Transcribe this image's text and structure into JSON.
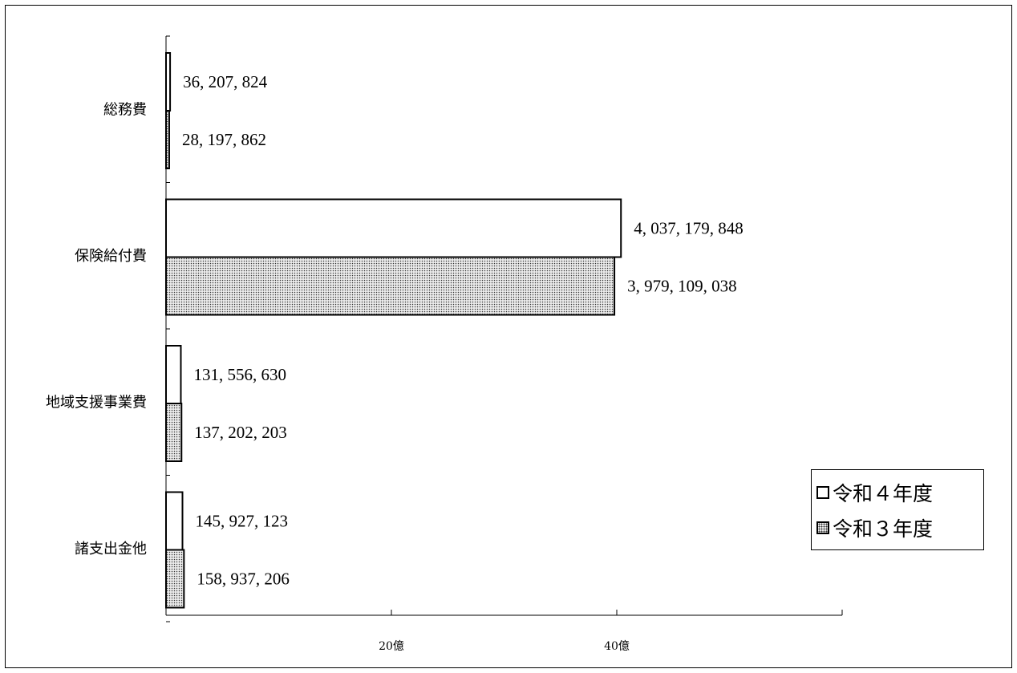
{
  "chart_data": {
    "type": "bar",
    "orientation": "horizontal",
    "categories": [
      "総務費",
      "保険給付費",
      "地域支援事業費",
      "諸支出金他"
    ],
    "series": [
      {
        "name": "令和４年度",
        "values": [
          36207824,
          4037179848,
          131556630,
          145927123
        ],
        "labels": [
          "36, 207, 824",
          "4, 037, 179, 848",
          "131, 556, 630",
          "145, 927, 123"
        ],
        "fill": "#ffffff"
      },
      {
        "name": "令和３年度",
        "values": [
          28197862,
          3979109038,
          137202203,
          158937206
        ],
        "labels": [
          "28, 197, 862",
          "3, 979, 109, 038",
          "137, 202, 203",
          "158, 937, 206"
        ],
        "fill": "dotted"
      }
    ],
    "xticks": [
      {
        "value": 2000000000,
        "label": "20億"
      },
      {
        "value": 4000000000,
        "label": "40億"
      }
    ],
    "xlim": [
      0,
      6000000000
    ],
    "legend": "bottom-right",
    "grid": false
  },
  "legend": {
    "items": [
      {
        "label": "令和４年度"
      },
      {
        "label": "令和３年度"
      }
    ]
  }
}
